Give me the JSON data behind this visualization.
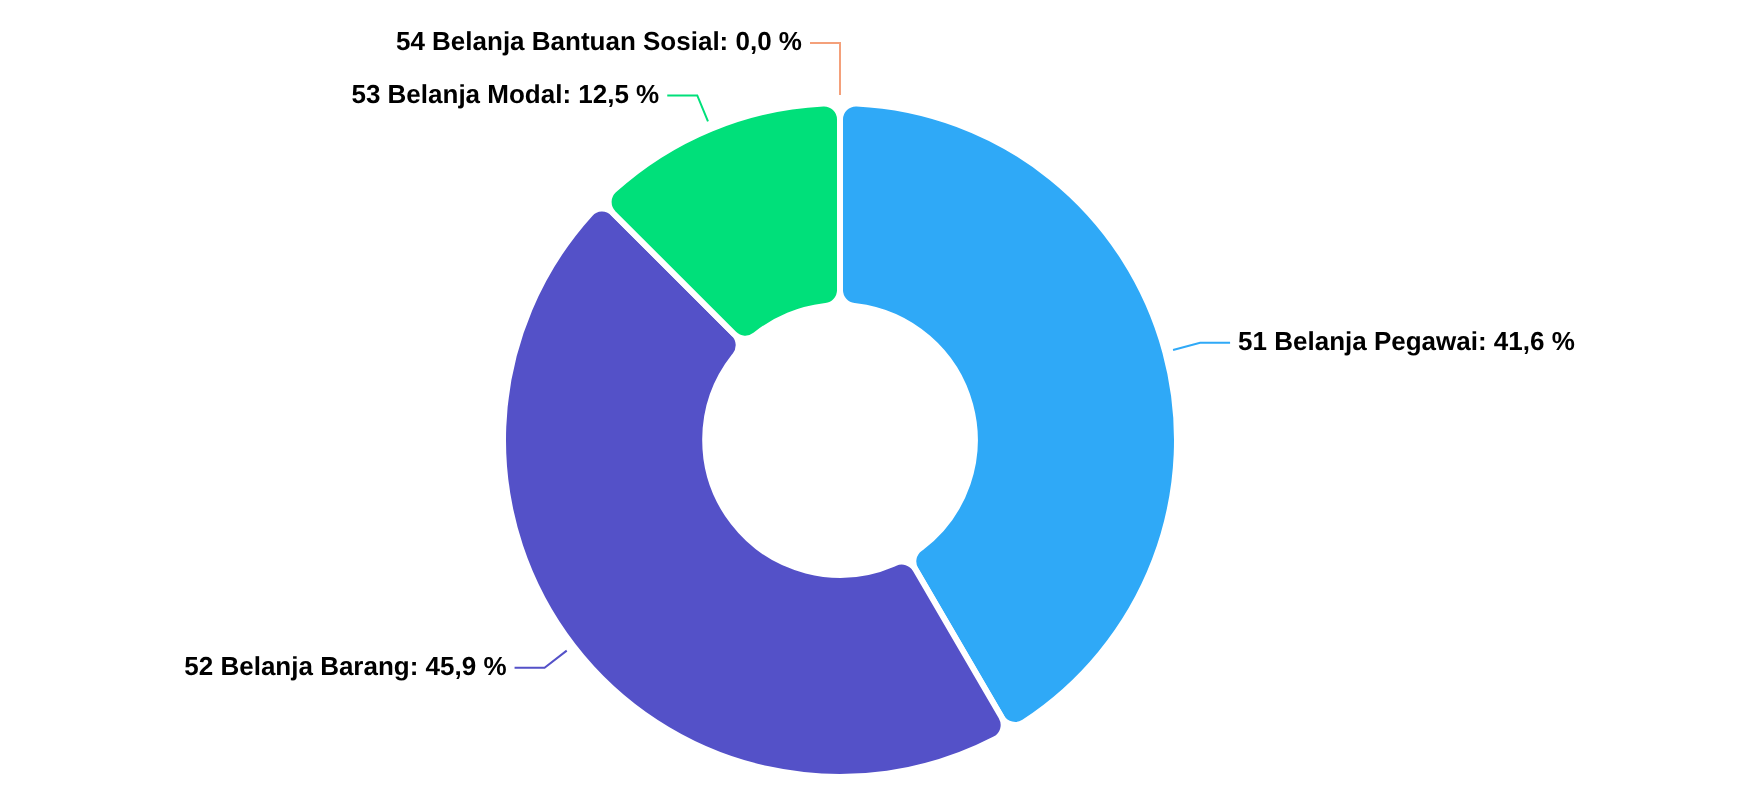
{
  "chart_data": {
    "type": "donut",
    "categories": [
      "51 Belanja Pegawai",
      "52 Belanja Barang",
      "53 Belanja Modal",
      "54 Belanja Bantuan Sosial"
    ],
    "values": [
      41.6,
      45.9,
      12.5,
      0.0
    ],
    "colors": [
      "#2fa9f7",
      "#5451c8",
      "#00e07a",
      "#f4a07a"
    ],
    "value_labels": [
      ": 41,6 %",
      ": 45,9 %",
      ": 12,5 %",
      ": 0,0 %"
    ],
    "legend": false
  }
}
